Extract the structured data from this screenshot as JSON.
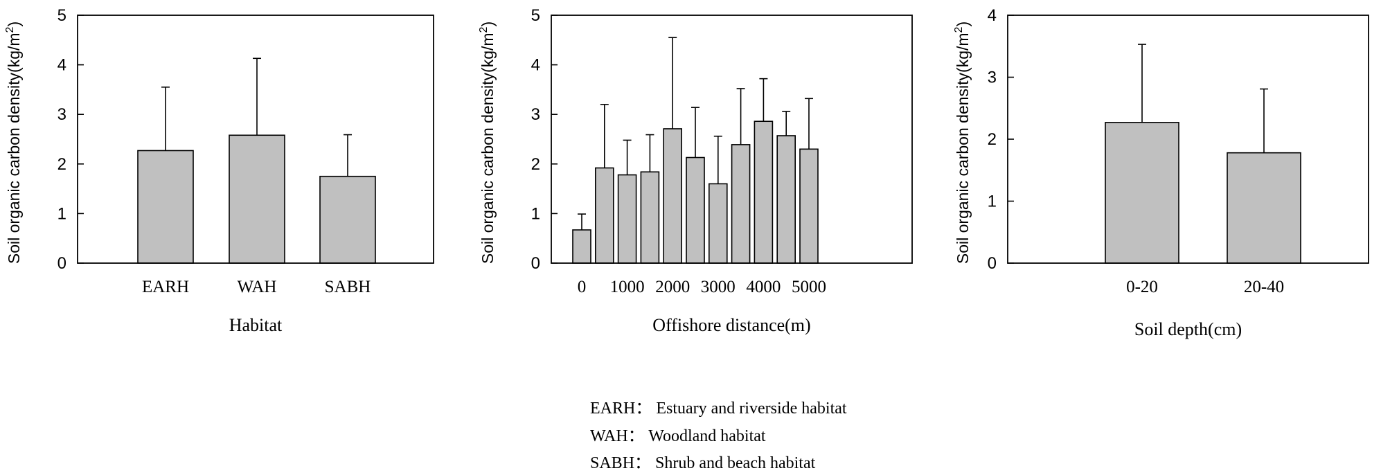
{
  "chart_data": [
    {
      "type": "bar",
      "categories": [
        "EARH",
        "WAH",
        "SABH"
      ],
      "values": [
        2.27,
        2.58,
        1.75
      ],
      "error_upper": [
        3.55,
        4.13,
        2.59
      ],
      "xlabel": "Habitat",
      "ylabel": "Soil organic carbon density(kg/m",
      "ylabel_sup": "2",
      "ylabel_close": ")",
      "ylim": [
        0,
        5
      ],
      "yticks": [
        "0",
        "1",
        "2",
        "3",
        "4",
        "5"
      ],
      "grid": false,
      "bar_color": "#c0c0c0"
    },
    {
      "type": "bar",
      "categories": [
        "0",
        "500",
        "1000",
        "1500",
        "2000",
        "2500",
        "3000",
        "3500",
        "4000",
        "4500",
        "5000"
      ],
      "tick_labels": [
        "0",
        "",
        "1000",
        "",
        "2000",
        "",
        "3000",
        "",
        "4000",
        "",
        "5000"
      ],
      "values": [
        0.67,
        1.92,
        1.78,
        1.84,
        2.71,
        2.13,
        1.6,
        2.39,
        2.86,
        2.57,
        2.3
      ],
      "error_upper": [
        0.99,
        3.2,
        2.48,
        2.59,
        4.55,
        3.14,
        2.56,
        3.52,
        3.72,
        3.06,
        3.32
      ],
      "xlabel": "Offishore distance(m)",
      "ylabel": "Soil organic carbon density(kg/m",
      "ylabel_sup": "2",
      "ylabel_close": ")",
      "ylim": [
        0,
        5
      ],
      "yticks": [
        "0",
        "1",
        "2",
        "3",
        "4",
        "5"
      ],
      "grid": false,
      "bar_color": "#c0c0c0"
    },
    {
      "type": "bar",
      "categories": [
        "0-20",
        "20-40"
      ],
      "values": [
        2.27,
        1.78
      ],
      "error_upper": [
        3.53,
        2.81
      ],
      "xlabel": "Soil depth(cm)",
      "ylabel": "Soil organic carbon density(kg/m",
      "ylabel_sup": "2",
      "ylabel_close": ")",
      "ylim": [
        0,
        4
      ],
      "yticks": [
        "0",
        "1",
        "2",
        "3",
        "4"
      ],
      "grid": false,
      "bar_color": "#c0c0c0"
    }
  ],
  "legend": {
    "lines": [
      "EARH：  Estuary and riverside habitat",
      "WAH：  Woodland habitat",
      "SABH：  Shrub and beach habitat"
    ]
  }
}
